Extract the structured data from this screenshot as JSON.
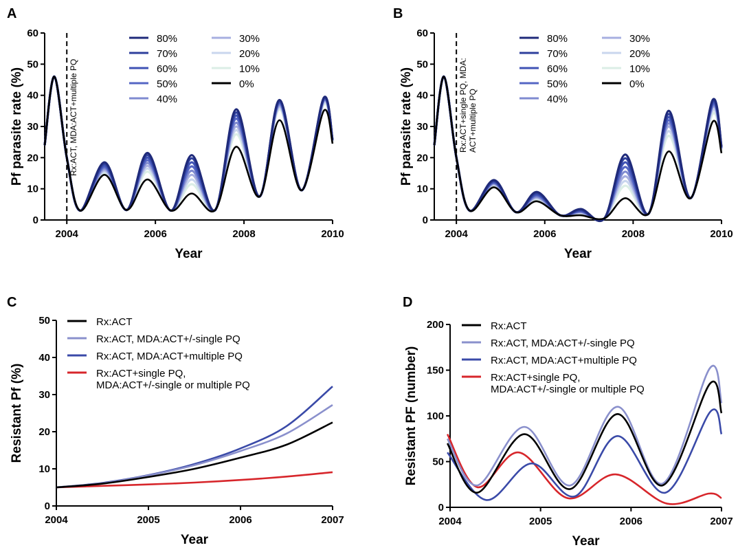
{
  "chart_data": [
    {
      "panel": "A",
      "type": "line",
      "xlabel": "Year",
      "ylabel": "Pf parasite rate  (%)",
      "xlim": [
        2003.5,
        2010
      ],
      "ylim": [
        0,
        60
      ],
      "xticks": [
        2004,
        2006,
        2008,
        2010
      ],
      "yticks": [
        0,
        10,
        20,
        30,
        40,
        50,
        60
      ],
      "annotation": "Rx:ACT, MDA:ACT+multiple PQ",
      "intervention_year": 2004,
      "series": [
        {
          "name": "80%",
          "color": "#1f2a7a",
          "peaks": [
            18.5,
            21.5,
            20.8,
            35.5,
            38.5,
            39.2
          ]
        },
        {
          "name": "70%",
          "color": "#2e3f9c",
          "peaks": [
            18.0,
            20.8,
            19.8,
            34.5,
            38.2,
            39.0
          ]
        },
        {
          "name": "60%",
          "color": "#3f52b4",
          "peaks": [
            17.5,
            20.0,
            18.5,
            33.5,
            37.8,
            38.8
          ]
        },
        {
          "name": "50%",
          "color": "#5566c4",
          "peaks": [
            17.0,
            19.2,
            17.2,
            32.5,
            37.5,
            38.5
          ]
        },
        {
          "name": "40%",
          "color": "#7f8ad0",
          "peaks": [
            16.5,
            18.3,
            15.8,
            31.2,
            37.0,
            38.3
          ]
        },
        {
          "name": "30%",
          "color": "#a7afe0",
          "peaks": [
            16.0,
            17.4,
            14.5,
            30.0,
            36.5,
            38.0
          ]
        },
        {
          "name": "20%",
          "color": "#c9d6ee",
          "peaks": [
            15.5,
            16.5,
            13.0,
            28.8,
            36.0,
            37.5
          ]
        },
        {
          "name": "10%",
          "color": "#dbeee6",
          "peaks": [
            15.0,
            15.5,
            11.5,
            27.5,
            35.5,
            37.0
          ]
        },
        {
          "name": "0%",
          "color": "#000000",
          "peaks": [
            14.5,
            13.0,
            8.5,
            23.5,
            32.0,
            35.0
          ]
        }
      ],
      "troughs": [
        3.0,
        3.2,
        3.0,
        3.2,
        7.5,
        9.5,
        24.5
      ],
      "pre_peak": 46
    },
    {
      "panel": "B",
      "type": "line",
      "xlabel": "Year",
      "ylabel": "Pf parasite rate  (%)",
      "xlim": [
        2003.5,
        2010
      ],
      "ylim": [
        0,
        60
      ],
      "xticks": [
        2004,
        2006,
        2008,
        2010
      ],
      "yticks": [
        0,
        10,
        20,
        30,
        40,
        50,
        60
      ],
      "annotation_lines": [
        "Rx:ACT+single PQ, MDA:",
        "ACT+multiple PQ"
      ],
      "intervention_year": 2004,
      "series": [
        {
          "name": "80%",
          "color": "#1f2a7a",
          "peaks": [
            12.8,
            9.0,
            3.5,
            21.0,
            35.0,
            38.5
          ]
        },
        {
          "name": "70%",
          "color": "#2e3f9c",
          "peaks": [
            12.5,
            8.6,
            3.2,
            19.8,
            34.0,
            38.0
          ]
        },
        {
          "name": "60%",
          "color": "#3f52b4",
          "peaks": [
            12.2,
            8.2,
            3.0,
            18.5,
            33.0,
            37.5
          ]
        },
        {
          "name": "50%",
          "color": "#5566c4",
          "peaks": [
            12.0,
            7.9,
            2.8,
            17.0,
            32.0,
            37.0
          ]
        },
        {
          "name": "40%",
          "color": "#7f8ad0",
          "peaks": [
            11.8,
            7.5,
            2.6,
            15.5,
            31.0,
            36.5
          ]
        },
        {
          "name": "30%",
          "color": "#a7afe0",
          "peaks": [
            11.5,
            7.2,
            2.4,
            14.0,
            30.0,
            36.0
          ]
        },
        {
          "name": "20%",
          "color": "#c9d6ee",
          "peaks": [
            11.3,
            6.9,
            2.2,
            12.5,
            28.5,
            35.0
          ]
        },
        {
          "name": "10%",
          "color": "#dbeee6",
          "peaks": [
            11.1,
            6.6,
            2.0,
            11.0,
            27.0,
            34.0
          ]
        },
        {
          "name": "0%",
          "color": "#000000",
          "peaks": [
            10.5,
            6.0,
            1.5,
            7.0,
            22.0,
            31.5
          ]
        }
      ],
      "troughs": [
        3.0,
        2.5,
        1.5,
        0.5,
        2.0,
        7.0,
        22.5
      ],
      "pre_peak": 46
    },
    {
      "panel": "C",
      "type": "line",
      "xlabel": "Year",
      "ylabel": "Resistant Pf (%)",
      "xlim": [
        2004,
        2007
      ],
      "ylim": [
        0,
        50
      ],
      "xticks": [
        2004,
        2005,
        2006,
        2007
      ],
      "yticks": [
        0,
        10,
        20,
        30,
        40,
        50
      ],
      "series": [
        {
          "name": "Rx:ACT",
          "color": "#000000",
          "x": [
            2004,
            2004.5,
            2005,
            2005.5,
            2006,
            2006.5,
            2007
          ],
          "y": [
            5.0,
            6.0,
            7.8,
            10.0,
            13.0,
            16.5,
            22.5
          ]
        },
        {
          "name": "Rx:ACT, MDA:ACT+/-single PQ",
          "color": "#8a90cc",
          "x": [
            2004,
            2004.5,
            2005,
            2005.5,
            2006,
            2006.5,
            2007
          ],
          "y": [
            5.0,
            6.1,
            8.2,
            11.0,
            14.8,
            19.5,
            27.2
          ]
        },
        {
          "name": "Rx:ACT, MDA:ACT+multiple PQ",
          "color": "#3a4aa8",
          "x": [
            2004,
            2004.5,
            2005,
            2005.5,
            2006,
            2006.5,
            2007
          ],
          "y": [
            5.0,
            6.2,
            8.3,
            11.3,
            15.5,
            21.5,
            32.2
          ]
        },
        {
          "name": "Rx:ACT+single PQ,",
          "name2": "MDA:ACT+/-single or multiple PQ",
          "color": "#d7262b",
          "x": [
            2004,
            2004.5,
            2005,
            2005.5,
            2006,
            2006.5,
            2007
          ],
          "y": [
            5.0,
            5.4,
            5.8,
            6.3,
            7.0,
            7.9,
            9.1
          ]
        }
      ]
    },
    {
      "panel": "D",
      "type": "line",
      "xlabel": "Year",
      "ylabel": "Resistant PF (number)",
      "xlim": [
        2004,
        2007
      ],
      "ylim": [
        0,
        200
      ],
      "xticks": [
        2004,
        2005,
        2006,
        2007
      ],
      "yticks": [
        0,
        50,
        100,
        150,
        200
      ],
      "series": [
        {
          "name": "Rx:ACT",
          "color": "#000000",
          "x": [
            2003.97,
            2004.3,
            2004.82,
            2005.33,
            2005.85,
            2006.35,
            2006.87,
            2007.0
          ],
          "y": [
            70,
            16,
            80,
            20,
            102,
            24,
            135,
            103
          ]
        },
        {
          "name": "Rx:ACT, MDA:ACT+/-single PQ",
          "color": "#8a90cc",
          "x": [
            2003.97,
            2004.3,
            2004.82,
            2005.33,
            2005.85,
            2006.35,
            2006.87,
            2007.0
          ],
          "y": [
            75,
            24,
            88,
            24,
            110,
            26,
            152,
            114
          ]
        },
        {
          "name": "Rx:ACT, MDA:ACT+multiple PQ",
          "color": "#3a4aa8",
          "x": [
            2003.97,
            2004.4,
            2004.9,
            2005.38,
            2005.85,
            2006.38,
            2006.88,
            2007.0
          ],
          "y": [
            60,
            8,
            48,
            12,
            78,
            16,
            105,
            80
          ]
        },
        {
          "name": "Rx:ACT+single PQ,",
          "name2": "MDA:ACT+/-single or multiple PQ",
          "color": "#d7262b",
          "x": [
            2003.97,
            2004.3,
            2004.76,
            2005.3,
            2005.83,
            2006.4,
            2006.86,
            2007.0
          ],
          "y": [
            80,
            22,
            60,
            10,
            36,
            4,
            15,
            10
          ]
        }
      ]
    }
  ]
}
